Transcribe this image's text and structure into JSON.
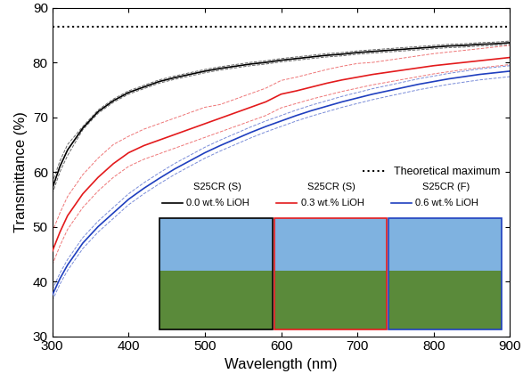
{
  "chart_data": {
    "type": "line",
    "x_label": "Wavelength (nm)",
    "y_label": "Transmittance (%)",
    "xlim": [
      300,
      900
    ],
    "xticks": [
      300,
      400,
      500,
      600,
      700,
      800,
      900
    ],
    "ylim": [
      30,
      90
    ],
    "yticks": [
      30,
      40,
      50,
      60,
      70,
      80,
      90
    ],
    "legend": "center right",
    "annotations": [
      "S25CR (S)",
      "S25CR (S)",
      "S25CR (F)"
    ],
    "x": [
      300,
      310,
      320,
      340,
      360,
      380,
      400,
      420,
      440,
      460,
      480,
      500,
      520,
      540,
      560,
      580,
      600,
      620,
      640,
      660,
      680,
      700,
      720,
      740,
      760,
      780,
      800,
      820,
      840,
      860,
      880,
      900
    ],
    "series": [
      {
        "name": "0.0 wt.% LiOH",
        "color": "#000000",
        "line_style": "solid",
        "values": [
          57,
          61,
          64,
          68,
          71,
          73,
          74.5,
          75.5,
          76.5,
          77.2,
          77.8,
          78.4,
          78.9,
          79.3,
          79.7,
          80,
          80.4,
          80.7,
          81,
          81.3,
          81.5,
          81.8,
          82,
          82.2,
          82.4,
          82.6,
          82.8,
          83,
          83.1,
          83.3,
          83.4,
          83.6
        ],
        "upper": [
          58,
          62,
          65,
          68.3,
          71.3,
          73.3,
          74.8,
          75.8,
          76.8,
          77.5,
          78.1,
          78.7,
          79.2,
          79.6,
          80,
          80.3,
          80.7,
          81,
          81.3,
          81.6,
          81.8,
          82.1,
          82.3,
          82.5,
          82.7,
          82.9,
          83.1,
          83.3,
          83.4,
          83.6,
          83.7,
          83.9
        ],
        "lower": [
          56,
          60,
          63,
          67.7,
          70.7,
          72.7,
          74.2,
          75.2,
          76.2,
          76.9,
          77.5,
          78.1,
          78.6,
          79,
          79.4,
          79.7,
          80.1,
          80.4,
          80.7,
          81,
          81.2,
          81.5,
          81.7,
          81.9,
          82.1,
          82.3,
          82.5,
          82.7,
          82.8,
          83,
          83.1,
          83.3
        ]
      },
      {
        "name": "0.3 wt.% LiOH",
        "color": "#e31a1c",
        "line_style": "solid",
        "values": [
          45.5,
          49,
          52,
          56,
          59,
          61.5,
          63.5,
          64.8,
          65.8,
          66.8,
          67.8,
          68.8,
          69.8,
          70.8,
          71.8,
          72.8,
          74.2,
          74.8,
          75.5,
          76.2,
          76.8,
          77.3,
          77.8,
          78.2,
          78.6,
          79,
          79.4,
          79.7,
          80,
          80.3,
          80.6,
          80.9
        ],
        "upper": [
          49,
          52.5,
          55.5,
          59.5,
          62.5,
          65,
          66.5,
          67.8,
          68.8,
          69.8,
          70.8,
          71.8,
          72.3,
          73.3,
          74.3,
          75.3,
          76.7,
          77.3,
          78,
          78.7,
          79.3,
          79.8,
          80.0,
          80.4,
          80.8,
          81.2,
          81.6,
          81.9,
          82.2,
          82.5,
          82.8,
          83.1
        ],
        "lower": [
          43,
          46.5,
          49.5,
          53.5,
          56.5,
          59,
          61,
          62.3,
          63.3,
          64.3,
          65.3,
          66.3,
          67.3,
          68.3,
          69.3,
          70.3,
          71.7,
          72.5,
          73.3,
          74,
          74.7,
          75.3,
          75.9,
          76.4,
          76.9,
          77.4,
          77.9,
          78.3,
          78.7,
          79,
          79.3,
          79.6
        ]
      },
      {
        "name": "0.6 wt.% LiOH",
        "color": "#1f3fbf",
        "line_style": "solid",
        "values": [
          37.5,
          40.5,
          43,
          47,
          50,
          52.5,
          55,
          57,
          58.8,
          60.5,
          62,
          63.5,
          64.8,
          66,
          67.2,
          68.3,
          69.3,
          70.3,
          71.2,
          72,
          72.8,
          73.5,
          74.2,
          74.8,
          75.4,
          76,
          76.5,
          77,
          77.4,
          77.8,
          78.1,
          78.4
        ],
        "upper": [
          38.5,
          41.5,
          44,
          48,
          51,
          53.5,
          56,
          58,
          59.8,
          61.5,
          63,
          64.5,
          65.8,
          67,
          68.2,
          69.3,
          70.3,
          71.3,
          72.2,
          73,
          73.8,
          74.5,
          75.2,
          75.8,
          76.4,
          77,
          77.5,
          78,
          78.4,
          78.8,
          79.1,
          79.4
        ],
        "lower": [
          36.5,
          39.5,
          42,
          46,
          49,
          51.5,
          54,
          56,
          57.8,
          59.5,
          61,
          62.5,
          63.8,
          65,
          66.2,
          67.3,
          68.3,
          69.3,
          70.2,
          71,
          71.8,
          72.5,
          73.2,
          73.8,
          74.4,
          75,
          75.5,
          76,
          76.4,
          76.8,
          77.1,
          77.4
        ]
      },
      {
        "name": "Theoretical maximum",
        "color": "#000000",
        "line_style": "dotted",
        "x": [
          300,
          900
        ],
        "values": [
          86.5,
          86.5
        ]
      }
    ]
  }
}
